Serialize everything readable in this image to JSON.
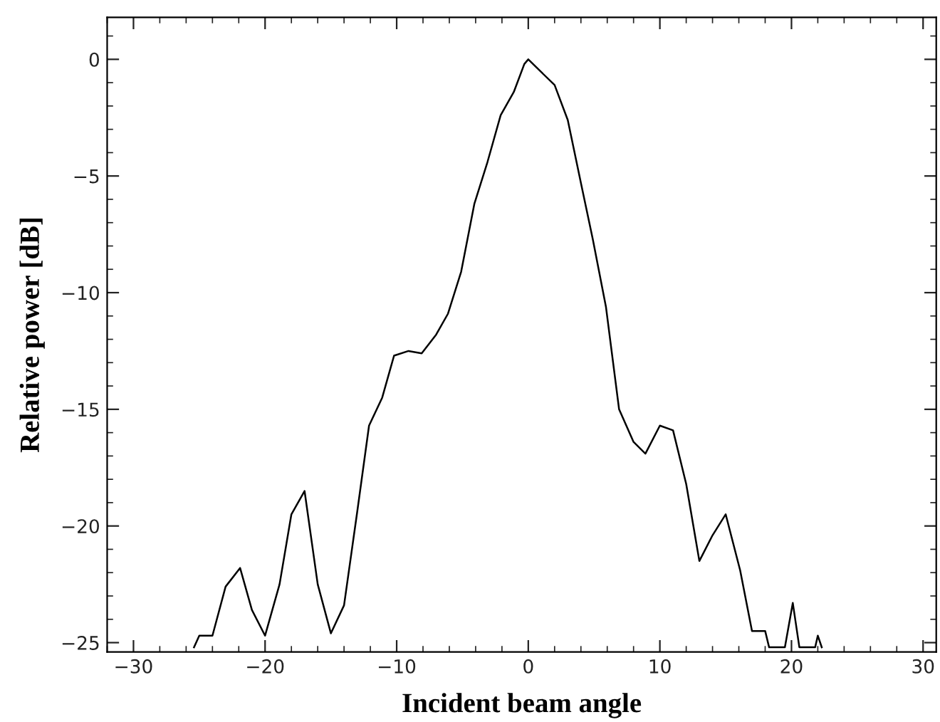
{
  "chart_data": {
    "type": "line",
    "xlabel": "Incident beam angle",
    "ylabel": "Relative power [dB]",
    "series": [
      {
        "color": "#000000",
        "x": [
          -25.4,
          -25.0,
          -24.0,
          -23.0,
          -21.9,
          -21.0,
          -20.0,
          -18.9,
          -18.0,
          -17.0,
          -16.0,
          -15.0,
          -14.0,
          -13.0,
          -12.1,
          -11.1,
          -10.2,
          -9.1,
          -8.1,
          -7.0,
          -6.1,
          -5.1,
          -4.1,
          -3.1,
          -2.1,
          -1.1,
          -0.3,
          0.0,
          0.9,
          2.0,
          3.0,
          4.0,
          4.9,
          5.9,
          6.9,
          8.0,
          8.9,
          10.0,
          11.0,
          12.0,
          13.0,
          14.0,
          15.0,
          16.1,
          17.0,
          18.0,
          18.3,
          19.5,
          20.1,
          20.6,
          21.8,
          22.0,
          22.3
        ],
        "values": [
          -25.2,
          -24.7,
          -24.7,
          -22.6,
          -21.8,
          -23.6,
          -24.7,
          -22.5,
          -19.5,
          -18.5,
          -22.5,
          -24.6,
          -23.4,
          -19.4,
          -15.7,
          -14.5,
          -12.7,
          -12.5,
          -12.6,
          -11.8,
          -10.9,
          -9.1,
          -6.2,
          -4.4,
          -2.4,
          -1.4,
          -0.2,
          0.0,
          -0.5,
          -1.1,
          -2.6,
          -5.3,
          -7.7,
          -10.6,
          -15.0,
          -16.4,
          -16.9,
          -15.7,
          -15.9,
          -18.2,
          -21.5,
          -20.4,
          -19.5,
          -21.9,
          -24.5,
          -24.5,
          -25.2,
          -25.2,
          -23.3,
          -25.2,
          -25.2,
          -24.7,
          -25.2
        ]
      }
    ],
    "xlim": [
      -32,
      31
    ],
    "ylim": [
      -25.4,
      1.8
    ],
    "xticks": [
      {
        "value": -30,
        "label": "−30"
      },
      {
        "value": -20,
        "label": "−20"
      },
      {
        "value": -10,
        "label": "−10"
      },
      0,
      10,
      20,
      30
    ],
    "yticks": [
      0,
      {
        "value": -5,
        "label": "−5"
      },
      {
        "value": -10,
        "label": "−10"
      },
      {
        "value": -15,
        "label": "−15"
      },
      {
        "value": -20,
        "label": "−20"
      },
      {
        "value": -25,
        "label": "−25"
      }
    ],
    "grid": false,
    "legend": false,
    "marker": "none",
    "line_style": "solid"
  }
}
